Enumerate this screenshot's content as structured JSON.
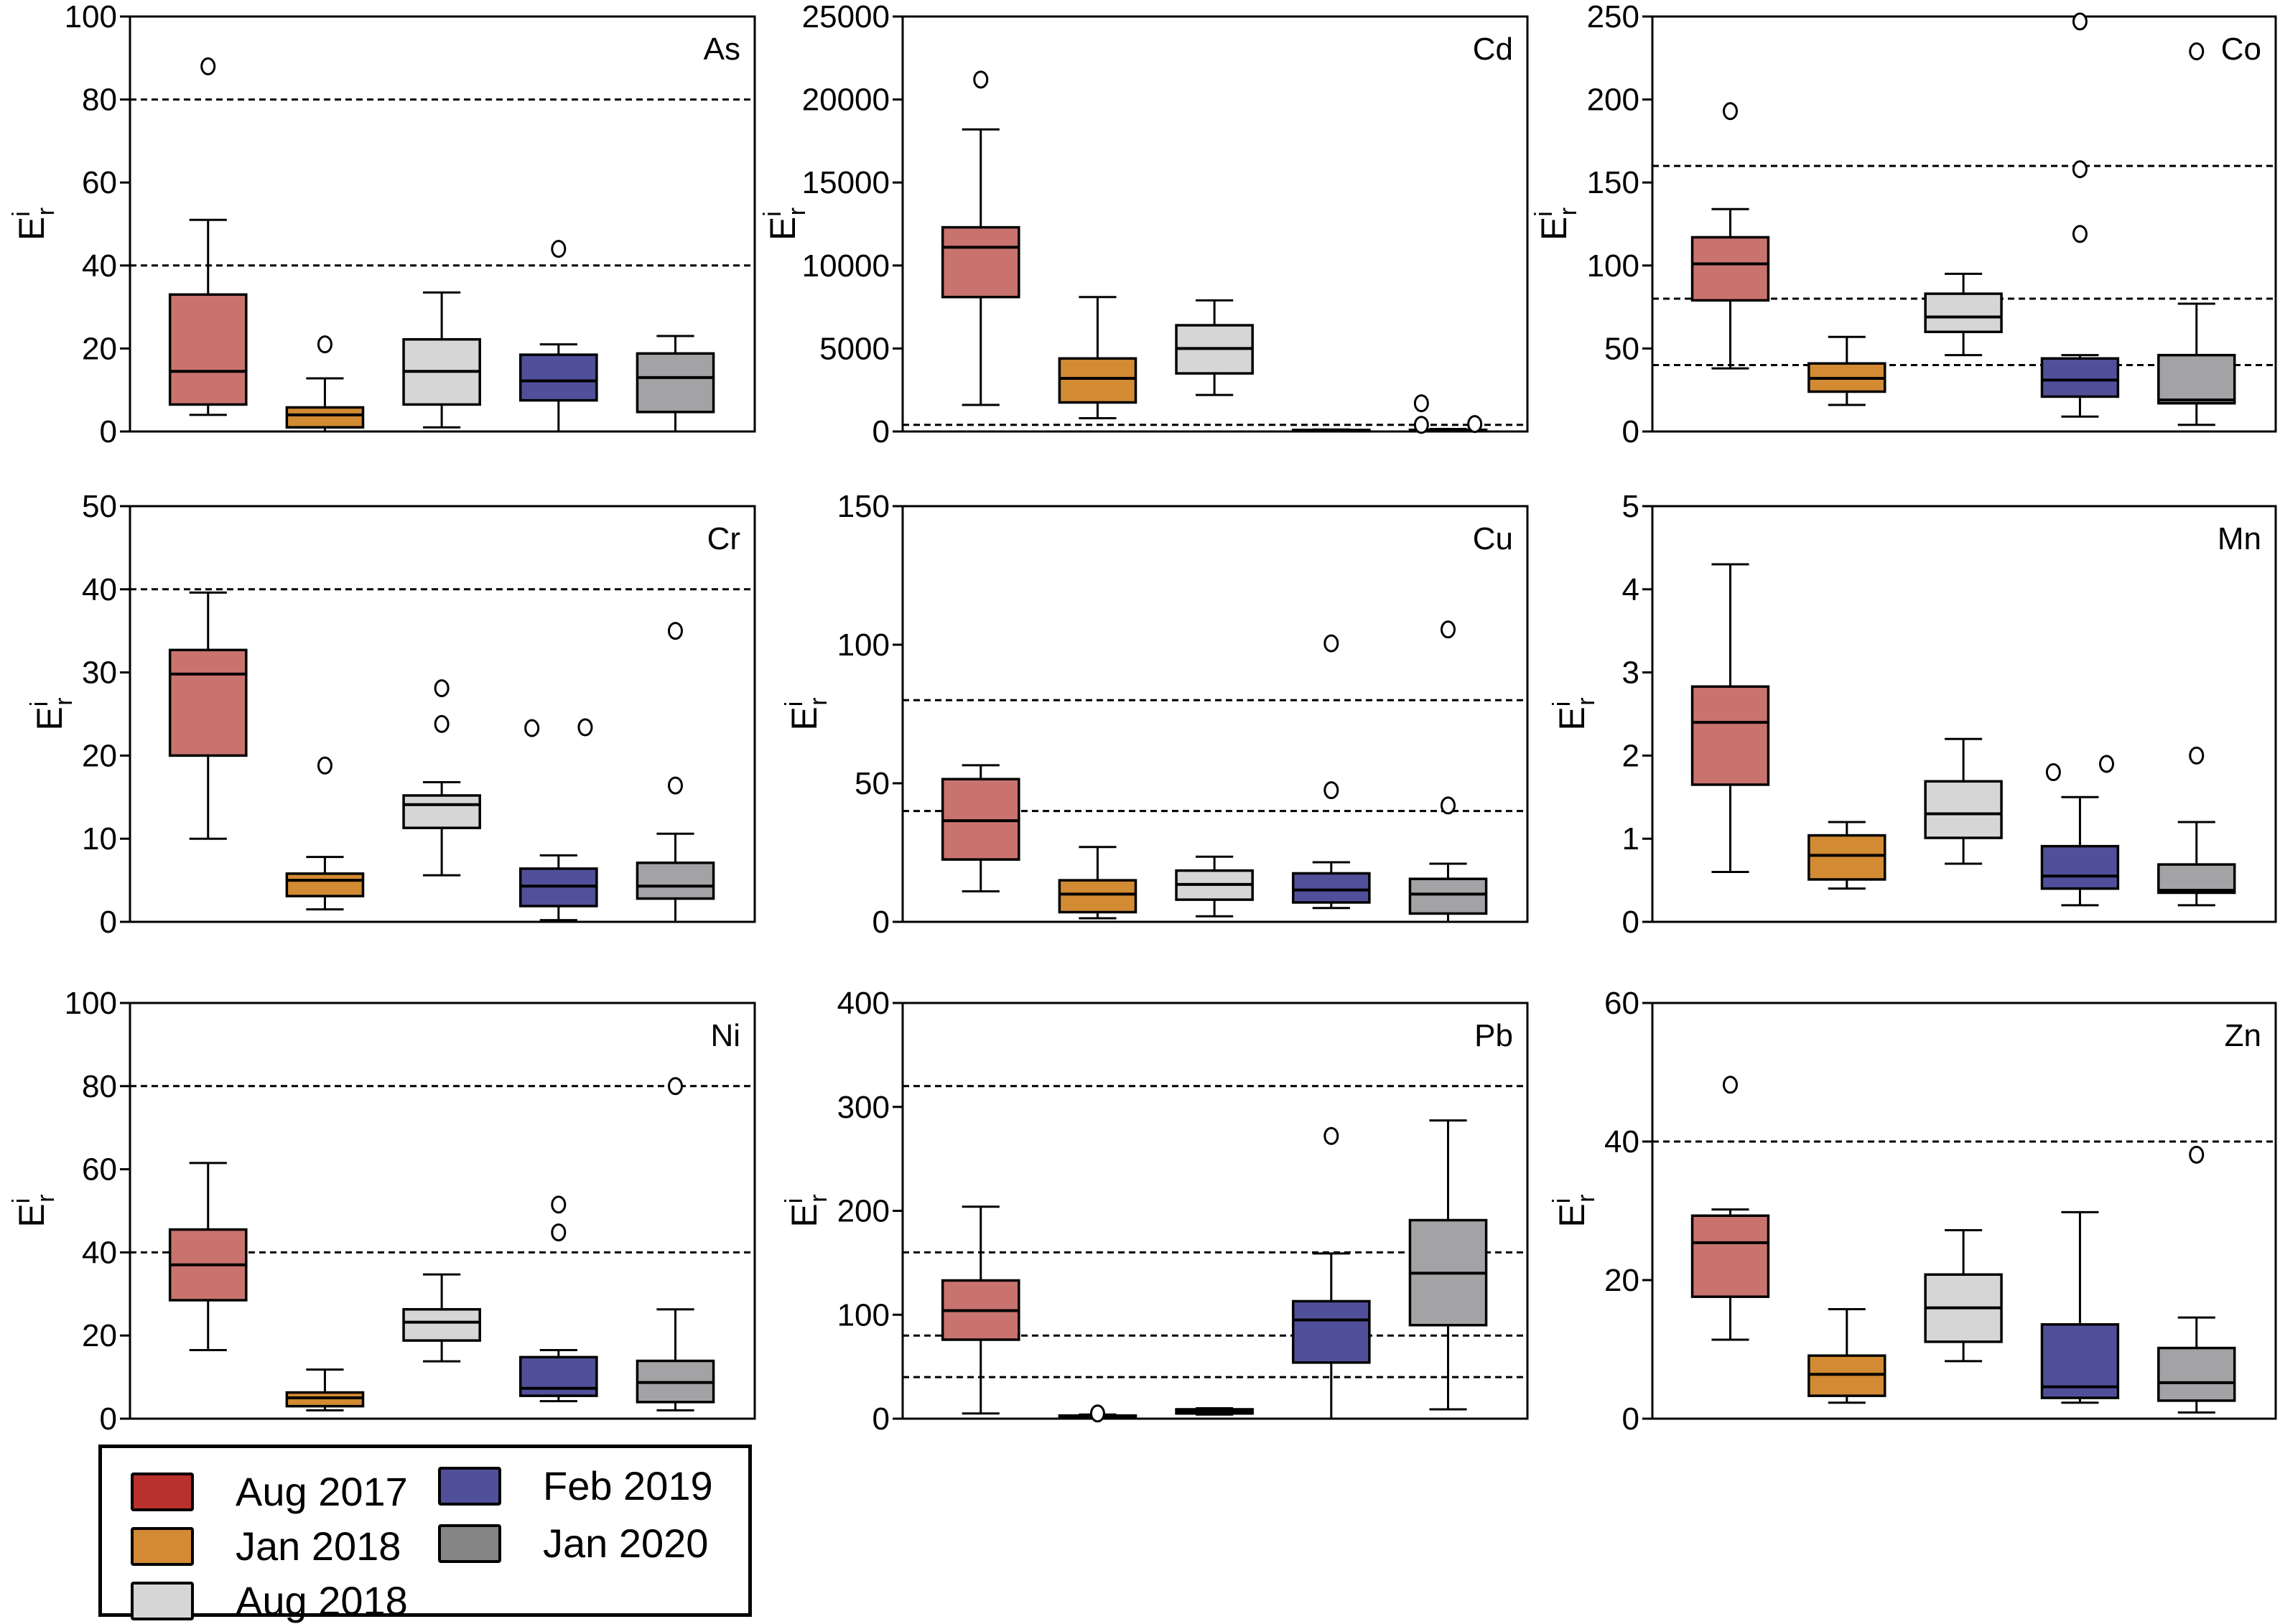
{
  "chart_data": {
    "type": "box",
    "ylabel": "E^i_r",
    "ylabel_main": "E",
    "ylabel_sup": "i",
    "ylabel_sub": "r",
    "series": [
      {
        "name": "Aug 2017",
        "color": "#c9736f",
        "legend_color": "#b8312c"
      },
      {
        "name": "Jan 2018",
        "color": "#d28a33",
        "legend_color": "#d28a33"
      },
      {
        "name": "Aug 2018",
        "color": "#d6d6d6",
        "legend_color": "#d6d6d6"
      },
      {
        "name": "Feb 2019",
        "color": "#50509a",
        "legend_color": "#50509a"
      },
      {
        "name": "Jan 2020",
        "color": "#a3a3a6",
        "legend_color": "#858585"
      }
    ],
    "panels": [
      {
        "element": "As",
        "ylim": [
          0,
          100
        ],
        "yticks": [
          0,
          20,
          40,
          60,
          80,
          100
        ],
        "thresholds": [
          40,
          80
        ],
        "boxes": [
          {
            "min": 4,
            "q1": 6.5,
            "median": 14.5,
            "q3": 33,
            "max": 51,
            "outliers": [
              88
            ]
          },
          {
            "min": 0,
            "q1": 1,
            "median": 4,
            "q3": 5.8,
            "max": 12.8,
            "outliers": [
              21
            ]
          },
          {
            "min": 1,
            "q1": 6.5,
            "median": 14.5,
            "q3": 22.2,
            "max": 33.5,
            "outliers": []
          },
          {
            "min": 0,
            "q1": 7.5,
            "median": 12.2,
            "q3": 18.5,
            "max": 21,
            "outliers": [
              44
            ]
          },
          {
            "min": 0,
            "q1": 4.7,
            "median": 13,
            "q3": 18.8,
            "max": 23,
            "outliers": []
          }
        ]
      },
      {
        "element": "Cd",
        "ylim": [
          0,
          25000
        ],
        "yticks": [
          0,
          5000,
          10000,
          15000,
          20000,
          25000
        ],
        "thresholds": [
          400
        ],
        "boxes": [
          {
            "min": 1600,
            "q1": 8100,
            "median": 11100,
            "q3": 12300,
            "max": 18200,
            "outliers": [
              21200
            ]
          },
          {
            "min": 800,
            "q1": 1750,
            "median": 3200,
            "q3": 4400,
            "max": 8100,
            "outliers": []
          },
          {
            "min": 2200,
            "q1": 3500,
            "median": 5000,
            "q3": 6400,
            "max": 7900,
            "outliers": []
          },
          {
            "min": 30,
            "q1": 50,
            "median": 70,
            "q3": 90,
            "max": 120,
            "outliers": []
          },
          {
            "min": 30,
            "q1": 50,
            "median": 80,
            "q3": 100,
            "max": 150,
            "outliers": [
              400,
              1700,
              450
            ]
          }
        ]
      },
      {
        "element": "Co",
        "ylim": [
          0,
          250
        ],
        "yticks": [
          0,
          50,
          100,
          150,
          200,
          250
        ],
        "thresholds": [
          40,
          80,
          160
        ],
        "boxes": [
          {
            "min": 38,
            "q1": 79,
            "median": 101,
            "q3": 117,
            "max": 134,
            "outliers": [
              193
            ]
          },
          {
            "min": 16,
            "q1": 24,
            "median": 32,
            "q3": 41,
            "max": 57,
            "outliers": []
          },
          {
            "min": 46,
            "q1": 60,
            "median": 69,
            "q3": 83,
            "max": 95,
            "outliers": []
          },
          {
            "min": 9,
            "q1": 21,
            "median": 31,
            "q3": 44,
            "max": 46,
            "outliers": [
              247,
              158,
              119
            ]
          },
          {
            "min": 4,
            "q1": 17,
            "median": 19,
            "q3": 46,
            "max": 77,
            "outliers": [
              229
            ]
          }
        ]
      },
      {
        "element": "Cr",
        "ylim": [
          0,
          50
        ],
        "yticks": [
          0,
          10,
          20,
          30,
          40,
          50
        ],
        "thresholds": [
          40
        ],
        "boxes": [
          {
            "min": 10,
            "q1": 20,
            "median": 29.8,
            "q3": 32.7,
            "max": 39.6,
            "outliers": []
          },
          {
            "min": 1.5,
            "q1": 3.1,
            "median": 5,
            "q3": 5.8,
            "max": 7.8,
            "outliers": [
              18.8
            ]
          },
          {
            "min": 5.6,
            "q1": 11.3,
            "median": 14.1,
            "q3": 15.2,
            "max": 16.8,
            "outliers": [
              28.1,
              23.8
            ]
          },
          {
            "min": 0.2,
            "q1": 1.9,
            "median": 4.3,
            "q3": 6.4,
            "max": 8,
            "outliers": [
              23.3,
              23.4
            ]
          },
          {
            "min": 0,
            "q1": 2.8,
            "median": 4.3,
            "q3": 7.1,
            "max": 10.6,
            "outliers": [
              35,
              16.4
            ]
          }
        ]
      },
      {
        "element": "Cu",
        "ylim": [
          0,
          150
        ],
        "yticks": [
          0,
          50,
          100,
          150
        ],
        "thresholds": [
          40,
          80
        ],
        "boxes": [
          {
            "min": 11,
            "q1": 22.5,
            "median": 36.5,
            "q3": 51.5,
            "max": 56.5,
            "outliers": []
          },
          {
            "min": 1.3,
            "q1": 3.5,
            "median": 10,
            "q3": 15,
            "max": 27,
            "outliers": []
          },
          {
            "min": 2,
            "q1": 8,
            "median": 13.5,
            "q3": 18.5,
            "max": 23.5,
            "outliers": []
          },
          {
            "min": 5,
            "q1": 7,
            "median": 11.5,
            "q3": 17.5,
            "max": 21.5,
            "outliers": [
              100.5,
              47.5
            ]
          },
          {
            "min": 0,
            "q1": 3,
            "median": 10,
            "q3": 15.5,
            "max": 21,
            "outliers": [
              105.5,
              42
            ]
          }
        ]
      },
      {
        "element": "Mn",
        "ylim": [
          0,
          5
        ],
        "yticks": [
          0,
          1,
          2,
          3,
          4,
          5
        ],
        "thresholds": [],
        "boxes": [
          {
            "min": 0.6,
            "q1": 1.65,
            "median": 2.4,
            "q3": 2.83,
            "max": 4.3,
            "outliers": []
          },
          {
            "min": 0.4,
            "q1": 0.51,
            "median": 0.8,
            "q3": 1.04,
            "max": 1.2,
            "outliers": []
          },
          {
            "min": 0.7,
            "q1": 1.01,
            "median": 1.3,
            "q3": 1.69,
            "max": 2.2,
            "outliers": []
          },
          {
            "min": 0.2,
            "q1": 0.4,
            "median": 0.55,
            "q3": 0.91,
            "max": 1.5,
            "outliers": [
              1.8,
              1.9
            ]
          },
          {
            "min": 0.2,
            "q1": 0.35,
            "median": 0.38,
            "q3": 0.69,
            "max": 1.2,
            "outliers": [
              2
            ]
          }
        ]
      },
      {
        "element": "Ni",
        "ylim": [
          0,
          100
        ],
        "yticks": [
          0,
          20,
          40,
          60,
          80,
          100
        ],
        "thresholds": [
          40,
          80
        ],
        "boxes": [
          {
            "min": 16.5,
            "q1": 28.5,
            "median": 37,
            "q3": 45.5,
            "max": 61.5,
            "outliers": []
          },
          {
            "min": 2,
            "q1": 3,
            "median": 5,
            "q3": 6.3,
            "max": 11.8,
            "outliers": []
          },
          {
            "min": 13.8,
            "q1": 18.8,
            "median": 23.2,
            "q3": 26.3,
            "max": 34.7,
            "outliers": []
          },
          {
            "min": 4.2,
            "q1": 5.5,
            "median": 7.3,
            "q3": 14.8,
            "max": 16.5,
            "outliers": [
              51.5,
              44.8
            ]
          },
          {
            "min": 2,
            "q1": 4,
            "median": 8.7,
            "q3": 13.9,
            "max": 26.3,
            "outliers": [
              80
            ]
          }
        ]
      },
      {
        "element": "Pb",
        "ylim": [
          0,
          400
        ],
        "yticks": [
          0,
          100,
          200,
          300,
          400
        ],
        "thresholds": [
          40,
          80,
          160,
          320
        ],
        "boxes": [
          {
            "min": 5,
            "q1": 76,
            "median": 104,
            "q3": 133,
            "max": 204,
            "outliers": []
          },
          {
            "min": 0.5,
            "q1": 1,
            "median": 2,
            "q3": 3,
            "max": 4,
            "outliers": [
              5
            ]
          },
          {
            "min": 4,
            "q1": 5,
            "median": 7,
            "q3": 9,
            "max": 10,
            "outliers": []
          },
          {
            "min": 0,
            "q1": 54,
            "median": 95,
            "q3": 113,
            "max": 159,
            "outliers": [
              272
            ]
          },
          {
            "min": 9,
            "q1": 90,
            "median": 140,
            "q3": 191,
            "max": 287,
            "outliers": []
          }
        ]
      },
      {
        "element": "Zn",
        "ylim": [
          0,
          60
        ],
        "yticks": [
          0,
          20,
          40,
          60
        ],
        "thresholds": [
          40
        ],
        "boxes": [
          {
            "min": 11.4,
            "q1": 17.6,
            "median": 25.4,
            "q3": 29.3,
            "max": 30.2,
            "outliers": [
              48.2
            ]
          },
          {
            "min": 2.3,
            "q1": 3.3,
            "median": 6.4,
            "q3": 9.1,
            "max": 15.8,
            "outliers": []
          },
          {
            "min": 8.3,
            "q1": 11.1,
            "median": 16,
            "q3": 20.8,
            "max": 27.2,
            "outliers": []
          },
          {
            "min": 2.3,
            "q1": 3,
            "median": 4.6,
            "q3": 13.6,
            "max": 29.8,
            "outliers": []
          },
          {
            "min": 0.9,
            "q1": 2.6,
            "median": 5.2,
            "q3": 10.2,
            "max": 14.6,
            "outliers": [
              38.1
            ]
          }
        ]
      }
    ],
    "grid": false,
    "legend": {
      "position": "bottom-left",
      "entries": [
        "Aug 2017",
        "Jan 2018",
        "Aug 2018",
        "Feb 2019",
        "Jan 2020"
      ]
    }
  },
  "legend": {
    "items": [
      {
        "label": "Aug 2017"
      },
      {
        "label": "Jan 2018"
      },
      {
        "label": "Aug 2018"
      },
      {
        "label": "Feb 2019"
      },
      {
        "label": "Jan 2020"
      }
    ]
  }
}
